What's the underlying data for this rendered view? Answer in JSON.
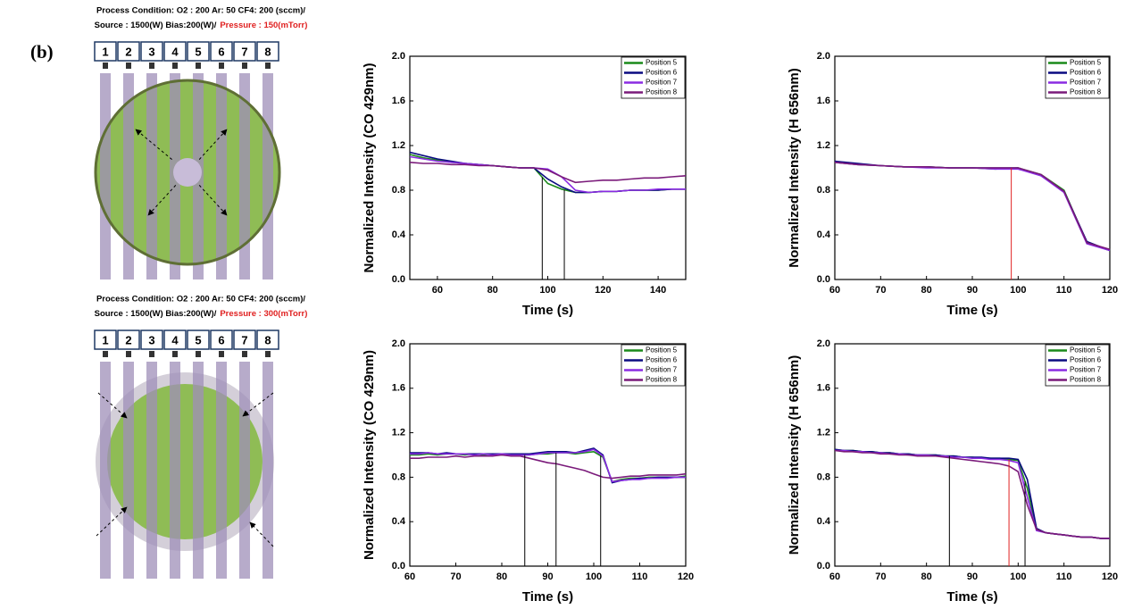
{
  "figure_label": "(b)",
  "diagrams": [
    {
      "condition": "Process Condition: O2 : 200 Ar: 50 CF4: 200 (sccm)/",
      "source": "Source : 1500(W) Bias:200(W)/",
      "pressure": "Pressure : 150(mTorr)",
      "positions": [
        "1",
        "2",
        "3",
        "4",
        "5",
        "6",
        "7",
        "8"
      ]
    },
    {
      "condition": "Process Condition: O2 : 200 Ar: 50 CF4: 200 (sccm)/",
      "source": "Source : 1500(W) Bias:200(W)/",
      "pressure": "Pressure : 300(mTorr)",
      "positions": [
        "1",
        "2",
        "3",
        "4",
        "5",
        "6",
        "7",
        "8"
      ]
    }
  ],
  "chart_data": [
    {
      "type": "line",
      "ylabel": "Normalized Intensity (CO 429nm)",
      "xlabel": "Time (s)",
      "x": [
        50,
        55,
        60,
        65,
        70,
        75,
        80,
        85,
        90,
        95,
        100,
        105,
        110,
        115,
        120,
        125,
        130,
        135,
        140,
        145,
        150
      ],
      "xlim": [
        50,
        150
      ],
      "xticks": [
        60,
        80,
        100,
        120,
        140
      ],
      "ylim": [
        0,
        2
      ],
      "yticks": [
        {
          "value": 0,
          "label": "0.0"
        },
        0.4,
        0.8,
        1.2,
        1.6,
        {
          "value": 2,
          "label": "2.0"
        }
      ],
      "legend": "upper right",
      "series": [
        {
          "name": "Position 5",
          "color": "#1a8a1a",
          "values": [
            1.12,
            1.09,
            1.07,
            1.05,
            1.04,
            1.03,
            1.02,
            1.01,
            1.0,
            1.0,
            0.86,
            0.81,
            0.78,
            0.78,
            0.79,
            0.79,
            0.8,
            0.8,
            0.8,
            0.81,
            0.81
          ]
        },
        {
          "name": "Position 6",
          "color": "#0a0a80",
          "values": [
            1.14,
            1.11,
            1.08,
            1.06,
            1.04,
            1.03,
            1.02,
            1.01,
            1.0,
            1.0,
            0.9,
            0.83,
            0.78,
            0.78,
            0.79,
            0.79,
            0.8,
            0.8,
            0.8,
            0.81,
            0.81
          ]
        },
        {
          "name": "Position 7",
          "color": "#8a2be2",
          "values": [
            1.1,
            1.08,
            1.06,
            1.05,
            1.04,
            1.03,
            1.02,
            1.01,
            1.0,
            1.0,
            0.99,
            0.92,
            0.8,
            0.78,
            0.79,
            0.79,
            0.8,
            0.8,
            0.81,
            0.81,
            0.81
          ]
        },
        {
          "name": "Position 8",
          "color": "#7a1a7a",
          "values": [
            1.05,
            1.04,
            1.04,
            1.03,
            1.03,
            1.02,
            1.02,
            1.01,
            1.0,
            1.0,
            0.98,
            0.92,
            0.87,
            0.88,
            0.89,
            0.89,
            0.9,
            0.91,
            0.91,
            0.92,
            0.93
          ]
        }
      ],
      "vlines": [
        {
          "x": 98,
          "color": "#000000"
        },
        {
          "x": 106,
          "color": "#000000"
        }
      ]
    },
    {
      "type": "line",
      "ylabel": "Normalized Intensity (H 656nm)",
      "xlabel": "Time (s)",
      "x": [
        60,
        65,
        70,
        75,
        80,
        85,
        90,
        95,
        100,
        105,
        110,
        115,
        120
      ],
      "xlim": [
        60,
        120
      ],
      "xticks": [
        60,
        70,
        80,
        90,
        100,
        110,
        120
      ],
      "ylim": [
        0,
        2
      ],
      "yticks": [
        {
          "value": 0,
          "label": "0.0"
        },
        0.4,
        0.8,
        1.2,
        1.6,
        {
          "value": 2,
          "label": "2.0"
        }
      ],
      "legend": "upper right",
      "series": [
        {
          "name": "Position 5",
          "color": "#1a8a1a",
          "values": [
            1.05,
            1.03,
            1.02,
            1.01,
            1.01,
            1.0,
            1.0,
            0.99,
            1.0,
            0.94,
            0.8,
            0.33,
            0.26
          ]
        },
        {
          "name": "Position 6",
          "color": "#0a0a80",
          "values": [
            1.06,
            1.04,
            1.02,
            1.01,
            1.01,
            1.0,
            1.0,
            1.0,
            1.0,
            0.93,
            0.79,
            0.34,
            0.26
          ]
        },
        {
          "name": "Position 7",
          "color": "#8a2be2",
          "values": [
            1.05,
            1.03,
            1.02,
            1.01,
            1.0,
            1.0,
            1.0,
            0.99,
            0.99,
            0.93,
            0.78,
            0.32,
            0.26
          ]
        },
        {
          "name": "Position 8",
          "color": "#7a1a7a",
          "values": [
            1.05,
            1.03,
            1.02,
            1.01,
            1.01,
            1.0,
            1.0,
            1.0,
            1.0,
            0.94,
            0.79,
            0.33,
            0.27
          ]
        }
      ],
      "vlines": [
        {
          "x": 98.5,
          "color": "#e02020"
        }
      ]
    },
    {
      "type": "line",
      "ylabel": "Normalized Intensity (CO 429nm)",
      "xlabel": "Time (s)",
      "x": [
        60,
        62,
        64,
        66,
        68,
        70,
        72,
        74,
        76,
        78,
        80,
        82,
        84,
        86,
        88,
        90,
        92,
        94,
        96,
        98,
        100,
        102,
        104,
        106,
        108,
        110,
        112,
        114,
        116,
        118,
        120
      ],
      "xlim": [
        60,
        120
      ],
      "xticks": [
        60,
        70,
        80,
        90,
        100,
        110,
        120
      ],
      "ylim": [
        0,
        2
      ],
      "yticks": [
        {
          "value": 0,
          "label": "0.0"
        },
        0.4,
        0.8,
        1.2,
        1.6,
        {
          "value": 2,
          "label": "2.0"
        }
      ],
      "legend": "upper right",
      "series": [
        {
          "name": "Position 5",
          "color": "#1a8a1a",
          "values": [
            1.0,
            1.0,
            1.01,
            1.0,
            1.01,
            1.01,
            1.0,
            1.01,
            1.0,
            1.01,
            1.0,
            1.0,
            1.0,
            1.0,
            1.01,
            1.01,
            1.02,
            1.02,
            1.01,
            1.02,
            1.03,
            0.98,
            0.76,
            0.78,
            0.79,
            0.79,
            0.8,
            0.8,
            0.8,
            0.8,
            0.81
          ]
        },
        {
          "name": "Position 6",
          "color": "#0a0a80",
          "values": [
            1.02,
            1.02,
            1.02,
            1.01,
            1.02,
            1.01,
            1.01,
            1.01,
            1.01,
            1.01,
            1.01,
            1.01,
            1.01,
            1.01,
            1.02,
            1.03,
            1.03,
            1.03,
            1.02,
            1.04,
            1.06,
            1.0,
            0.75,
            0.77,
            0.78,
            0.79,
            0.79,
            0.8,
            0.8,
            0.8,
            0.8
          ]
        },
        {
          "name": "Position 7",
          "color": "#8a2be2",
          "values": [
            1.01,
            1.01,
            1.02,
            1.01,
            1.01,
            1.01,
            1.01,
            1.0,
            1.01,
            1.0,
            1.01,
            1.0,
            1.0,
            1.0,
            1.01,
            1.02,
            1.02,
            1.02,
            1.02,
            1.03,
            1.05,
            0.99,
            0.76,
            0.77,
            0.78,
            0.78,
            0.79,
            0.79,
            0.79,
            0.8,
            0.8
          ]
        },
        {
          "name": "Position 8",
          "color": "#7a1a7a",
          "values": [
            0.97,
            0.97,
            0.98,
            0.98,
            0.98,
            0.99,
            0.98,
            0.99,
            0.99,
            0.99,
            1.0,
            0.99,
            0.99,
            0.97,
            0.95,
            0.93,
            0.92,
            0.9,
            0.88,
            0.86,
            0.83,
            0.8,
            0.79,
            0.8,
            0.81,
            0.81,
            0.82,
            0.82,
            0.82,
            0.82,
            0.83
          ]
        }
      ],
      "vlines": [
        {
          "x": 85,
          "color": "#000000"
        },
        {
          "x": 91.8,
          "color": "#000000"
        },
        {
          "x": 101.5,
          "color": "#000000"
        }
      ]
    },
    {
      "type": "line",
      "ylabel": "Normalized Intensity (H 656nm)",
      "xlabel": "Time (s)",
      "x": [
        60,
        62,
        64,
        66,
        68,
        70,
        72,
        74,
        76,
        78,
        80,
        82,
        84,
        86,
        88,
        90,
        92,
        94,
        96,
        98,
        100,
        102,
        104,
        106,
        108,
        110,
        112,
        114,
        116,
        118,
        120
      ],
      "xlim": [
        60,
        120
      ],
      "xticks": [
        60,
        70,
        80,
        90,
        100,
        110,
        120
      ],
      "ylim": [
        0,
        2
      ],
      "yticks": [
        {
          "value": 0,
          "label": "0.0"
        },
        0.4,
        0.8,
        1.2,
        1.6,
        {
          "value": 2,
          "label": "2.0"
        }
      ],
      "legend": "upper right",
      "series": [
        {
          "name": "Position 5",
          "color": "#1a8a1a",
          "values": [
            1.05,
            1.04,
            1.04,
            1.03,
            1.03,
            1.02,
            1.02,
            1.01,
            1.01,
            1.0,
            1.0,
            1.0,
            0.99,
            0.99,
            0.98,
            0.98,
            0.97,
            0.97,
            0.97,
            0.96,
            0.95,
            0.7,
            0.33,
            0.3,
            0.29,
            0.28,
            0.27,
            0.26,
            0.26,
            0.25,
            0.25
          ]
        },
        {
          "name": "Position 6",
          "color": "#0a0a80",
          "values": [
            1.05,
            1.04,
            1.04,
            1.03,
            1.03,
            1.02,
            1.02,
            1.01,
            1.01,
            1.0,
            1.0,
            1.0,
            0.99,
            0.99,
            0.98,
            0.98,
            0.98,
            0.97,
            0.97,
            0.97,
            0.96,
            0.78,
            0.34,
            0.3,
            0.29,
            0.28,
            0.27,
            0.26,
            0.26,
            0.25,
            0.25
          ]
        },
        {
          "name": "Position 7",
          "color": "#8a2be2",
          "values": [
            1.04,
            1.04,
            1.03,
            1.03,
            1.02,
            1.02,
            1.01,
            1.01,
            1.0,
            1.0,
            1.0,
            0.99,
            0.99,
            0.98,
            0.98,
            0.97,
            0.97,
            0.96,
            0.96,
            0.95,
            0.93,
            0.62,
            0.32,
            0.3,
            0.29,
            0.28,
            0.27,
            0.26,
            0.26,
            0.25,
            0.25
          ]
        },
        {
          "name": "Position 8",
          "color": "#7a1a7a",
          "values": [
            1.04,
            1.03,
            1.03,
            1.02,
            1.02,
            1.01,
            1.01,
            1.0,
            1.0,
            0.99,
            0.99,
            0.99,
            0.98,
            0.97,
            0.96,
            0.95,
            0.94,
            0.93,
            0.92,
            0.9,
            0.85,
            0.55,
            0.33,
            0.3,
            0.29,
            0.28,
            0.27,
            0.26,
            0.26,
            0.25,
            0.25
          ]
        }
      ],
      "vlines": [
        {
          "x": 85,
          "color": "#000000"
        },
        {
          "x": 98,
          "color": "#e02020"
        },
        {
          "x": 101.5,
          "color": "#000000"
        }
      ]
    }
  ]
}
